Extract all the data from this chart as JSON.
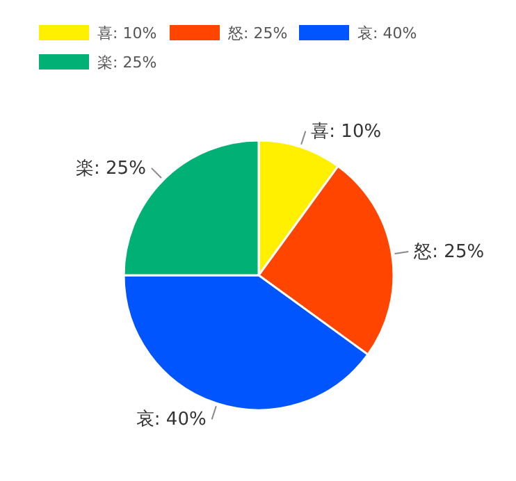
{
  "chart_data": {
    "type": "pie",
    "categories": [
      "喜: 10%",
      "怒: 25%",
      "哀: 40%",
      "楽: 25%"
    ],
    "values": [
      10,
      25,
      40,
      25
    ],
    "colors": [
      "#fff000",
      "#ff4500",
      "#0055ff",
      "#00b074"
    ],
    "legend": "top left"
  }
}
